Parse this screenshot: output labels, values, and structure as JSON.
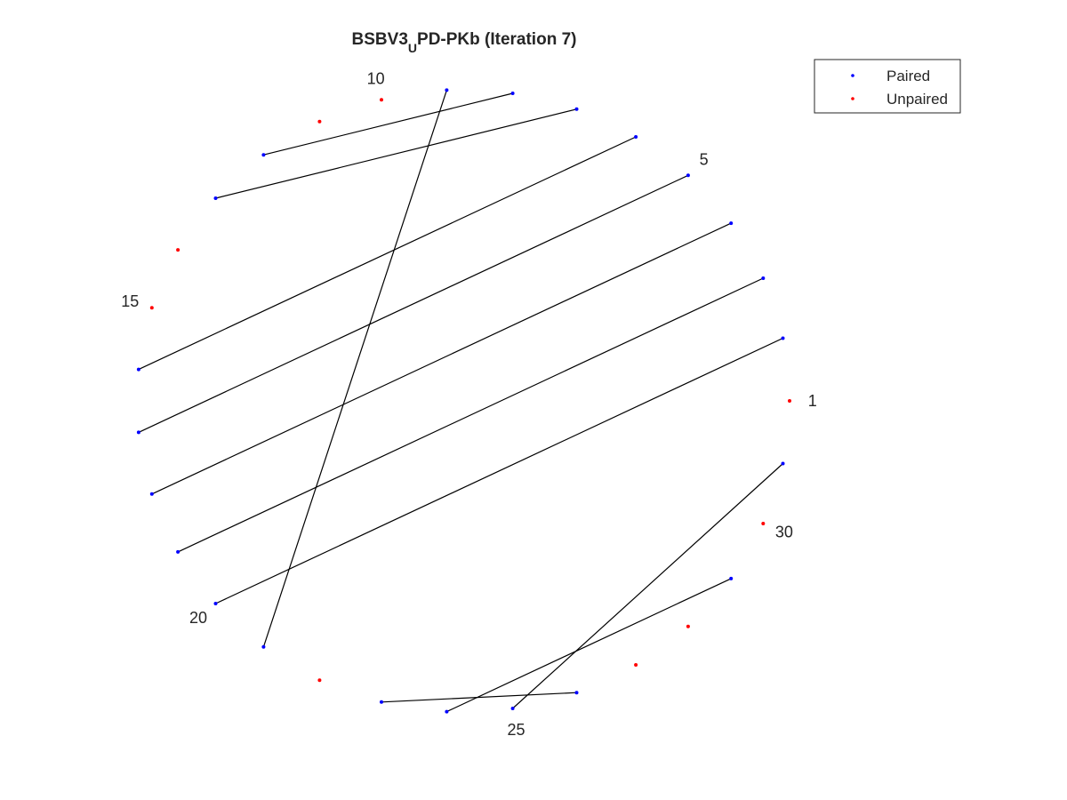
{
  "chart_data": {
    "type": "arc",
    "title": {
      "prefix": "BSBV3",
      "subscript": "U",
      "suffix": "PD-PKb (Iteration 7)"
    },
    "n_nucleotides": 31,
    "position_labels": [
      1,
      5,
      10,
      15,
      20,
      25,
      30
    ],
    "series": [
      {
        "name": "Paired",
        "color": "#0000ff",
        "indices": [
          2,
          3,
          4,
          5,
          6,
          7,
          8,
          9,
          12,
          13,
          16,
          17,
          18,
          19,
          20,
          21,
          23,
          24,
          25,
          26,
          29,
          31
        ]
      },
      {
        "name": "Unpaired",
        "color": "#ff0000",
        "indices": [
          1,
          10,
          11,
          14,
          15,
          22,
          27,
          28,
          30
        ]
      }
    ],
    "pairs": [
      [
        2,
        20
      ],
      [
        3,
        19
      ],
      [
        4,
        18
      ],
      [
        5,
        17
      ],
      [
        6,
        16
      ],
      [
        7,
        13
      ],
      [
        8,
        12
      ],
      [
        9,
        21
      ],
      [
        23,
        26
      ],
      [
        24,
        29
      ],
      [
        25,
        31
      ]
    ],
    "line_color": "#000000",
    "legend": {
      "position": "top-right",
      "entries": [
        "Paired",
        "Unpaired"
      ]
    }
  }
}
